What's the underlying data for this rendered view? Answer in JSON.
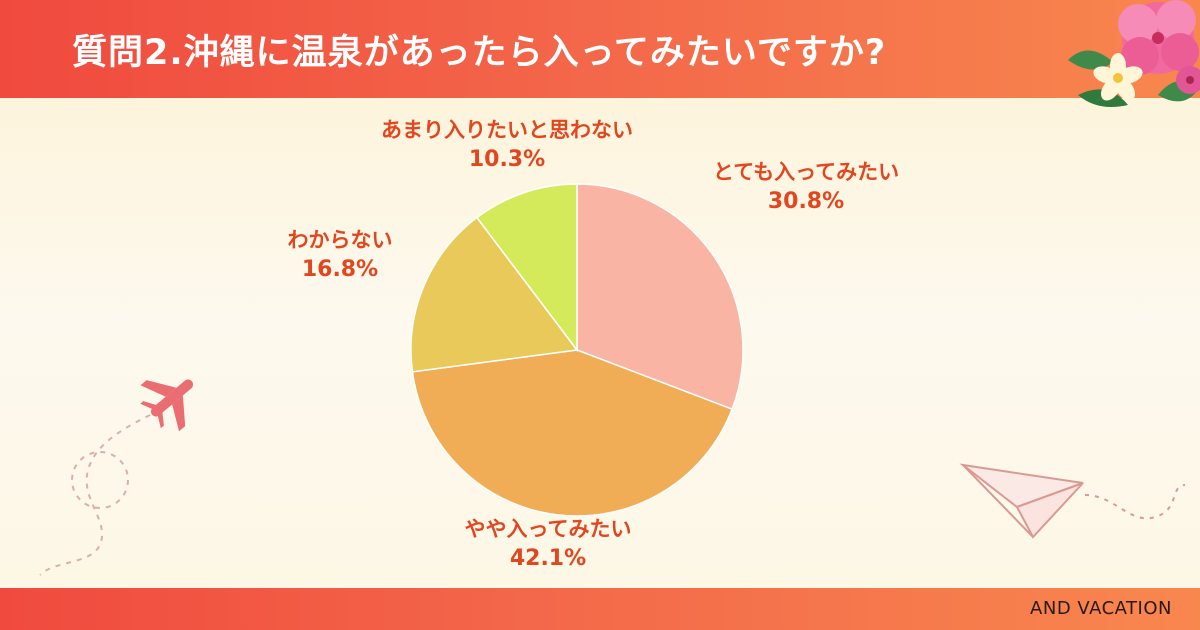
{
  "header": {
    "title": "質問2.沖縄に温泉があったら入ってみたいですか?"
  },
  "footer": {
    "brand": "AND VACATION"
  },
  "colors": {
    "header": "#f3684a",
    "label_text": "#e2461f",
    "slice_1": "#f9b4a4",
    "slice_2": "#f0ad55",
    "slice_3": "#e9c95a",
    "slice_4": "#d5ea5a"
  },
  "icons": [
    "hibiscus-flower-icon",
    "airplane-icon",
    "paper-plane-icon"
  ],
  "chart_data": {
    "type": "pie",
    "title": "",
    "start": "12 o'clock, clockwise",
    "slices": [
      {
        "label": "とても入ってみたい",
        "value": 30.8,
        "display": "30.8%"
      },
      {
        "label": "やや入ってみたい",
        "value": 42.1,
        "display": "42.1%"
      },
      {
        "label": "わからない",
        "value": 16.8,
        "display": "16.8%"
      },
      {
        "label": "あまり入りたいと思わない",
        "value": 10.3,
        "display": "10.3%"
      }
    ]
  }
}
